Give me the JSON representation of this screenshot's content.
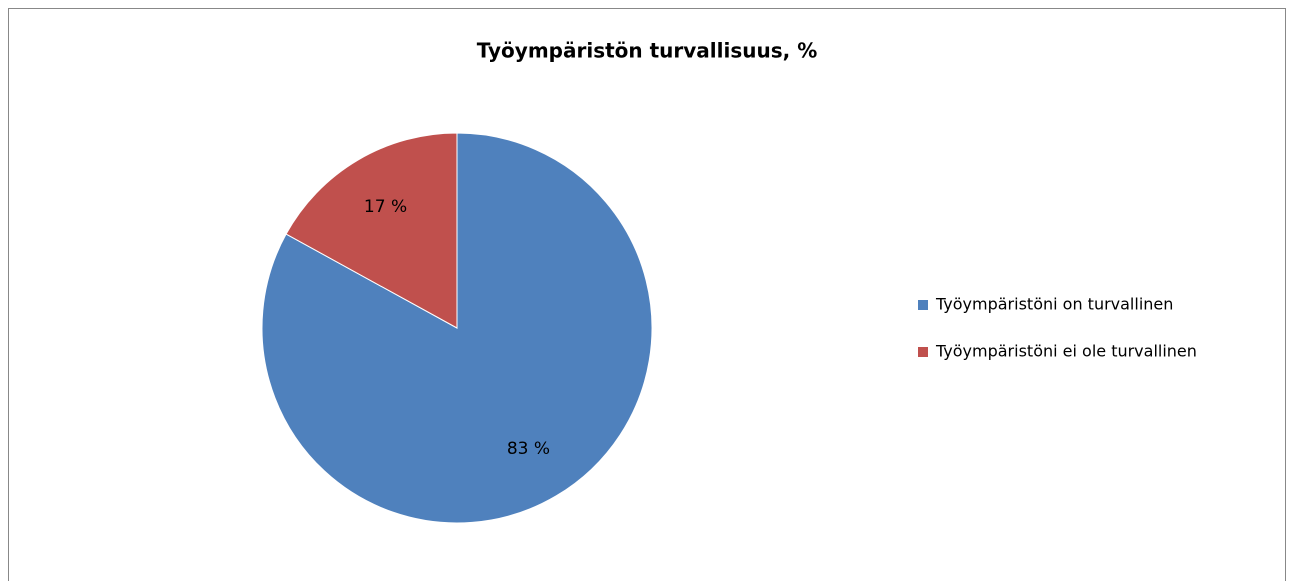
{
  "chart_data": {
    "type": "pie",
    "title": "Työympäristön turvallisuus, %",
    "categories": [
      "Työympäristöni on turvallinen",
      "Työympäristöni ei ole turvallinen"
    ],
    "values": [
      83,
      17
    ],
    "value_labels": [
      "83 %",
      "17 %"
    ],
    "colors": [
      "#4f81bd",
      "#c0504d"
    ],
    "legend": "right"
  }
}
